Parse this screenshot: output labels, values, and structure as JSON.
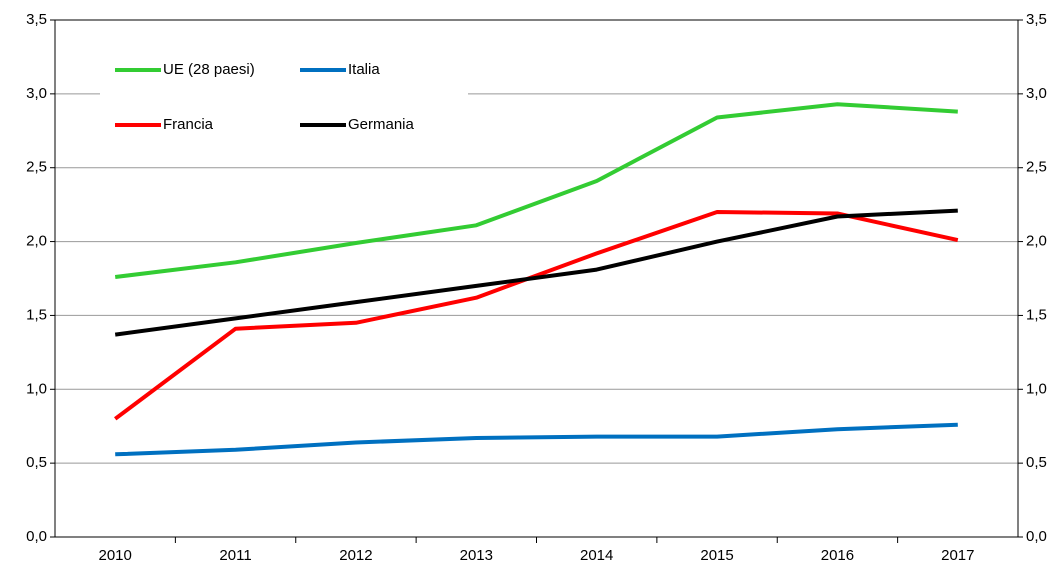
{
  "chart_data": {
    "type": "line",
    "categories": [
      "2010",
      "2011",
      "2012",
      "2013",
      "2014",
      "2015",
      "2016",
      "2017"
    ],
    "series": [
      {
        "name": "UE (28 paesi)",
        "color": "#33cc33",
        "values": [
          1.76,
          1.86,
          1.99,
          2.11,
          2.41,
          2.84,
          2.93,
          2.88
        ]
      },
      {
        "name": "Italia",
        "color": "#0070c0",
        "values": [
          0.56,
          0.59,
          0.64,
          0.67,
          0.68,
          0.68,
          0.73,
          0.76
        ]
      },
      {
        "name": "Francia",
        "color": "#ff0000",
        "values": [
          0.8,
          1.41,
          1.45,
          1.62,
          1.92,
          2.2,
          2.19,
          2.01
        ]
      },
      {
        "name": "Germania",
        "color": "#000000",
        "values": [
          1.37,
          1.48,
          1.59,
          1.7,
          1.81,
          2.0,
          2.17,
          2.21
        ]
      }
    ],
    "ylim": [
      0,
      3.5
    ],
    "yticks": [
      {
        "value": 0,
        "label": "0,0"
      },
      {
        "value": 0.5,
        "label": "0,5"
      },
      {
        "value": 1,
        "label": "1,0"
      },
      {
        "value": 1.5,
        "label": "1,5"
      },
      {
        "value": 2,
        "label": "2,0"
      },
      {
        "value": 2.5,
        "label": "2,5"
      },
      {
        "value": 3,
        "label": "3,0"
      },
      {
        "value": 3.5,
        "label": "3,5"
      }
    ],
    "grid": true,
    "legend": "upper left"
  }
}
